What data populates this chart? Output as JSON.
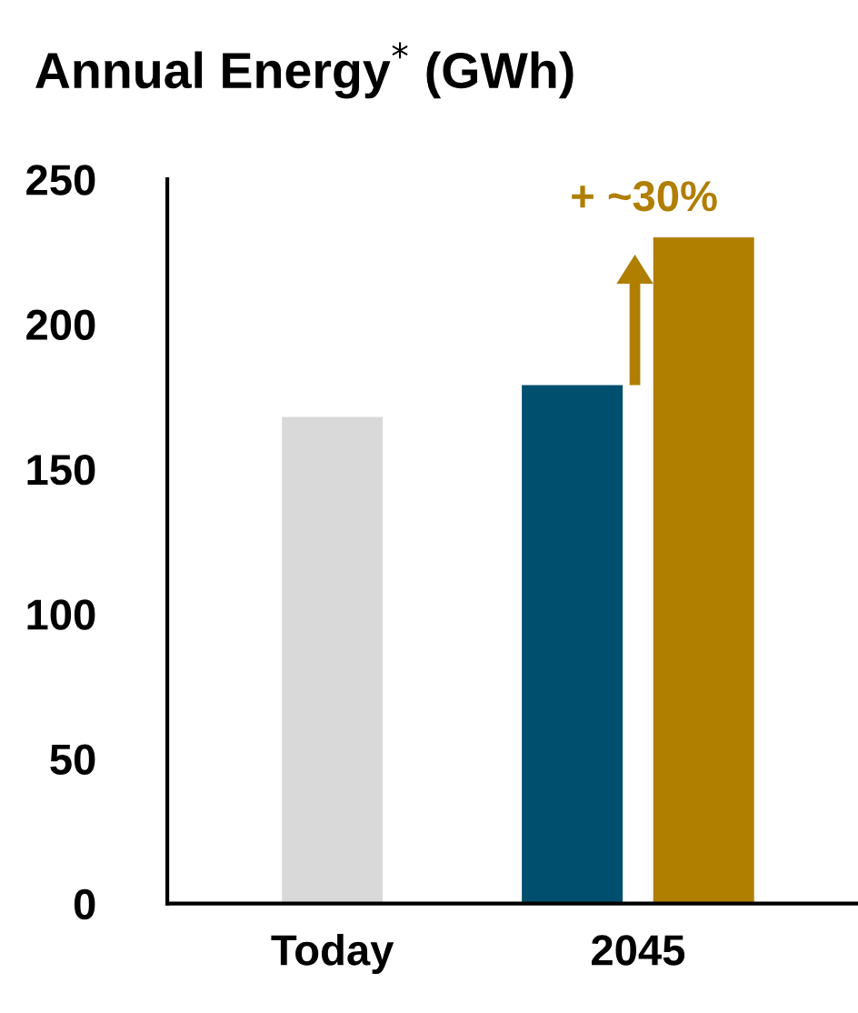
{
  "chart_data": {
    "type": "bar",
    "title": "Annual Energy$^{*}$ (GWh)",
    "categories": [
      "Today",
      "2045"
    ],
    "series": [
      {
        "colors": [
          "#d9d9d9",
          "#004f6e"
        ],
        "values": [
          168,
          179
        ]
      },
      {
        "color": "#b07f00",
        "values": [
          null,
          230
        ]
      }
    ],
    "ylim": [
      0,
      250
    ],
    "yticks": [
      0,
      50,
      100,
      150,
      200,
      250
    ],
    "grid": false,
    "legend": false,
    "annotations": [
      "+ ~30%"
    ]
  }
}
